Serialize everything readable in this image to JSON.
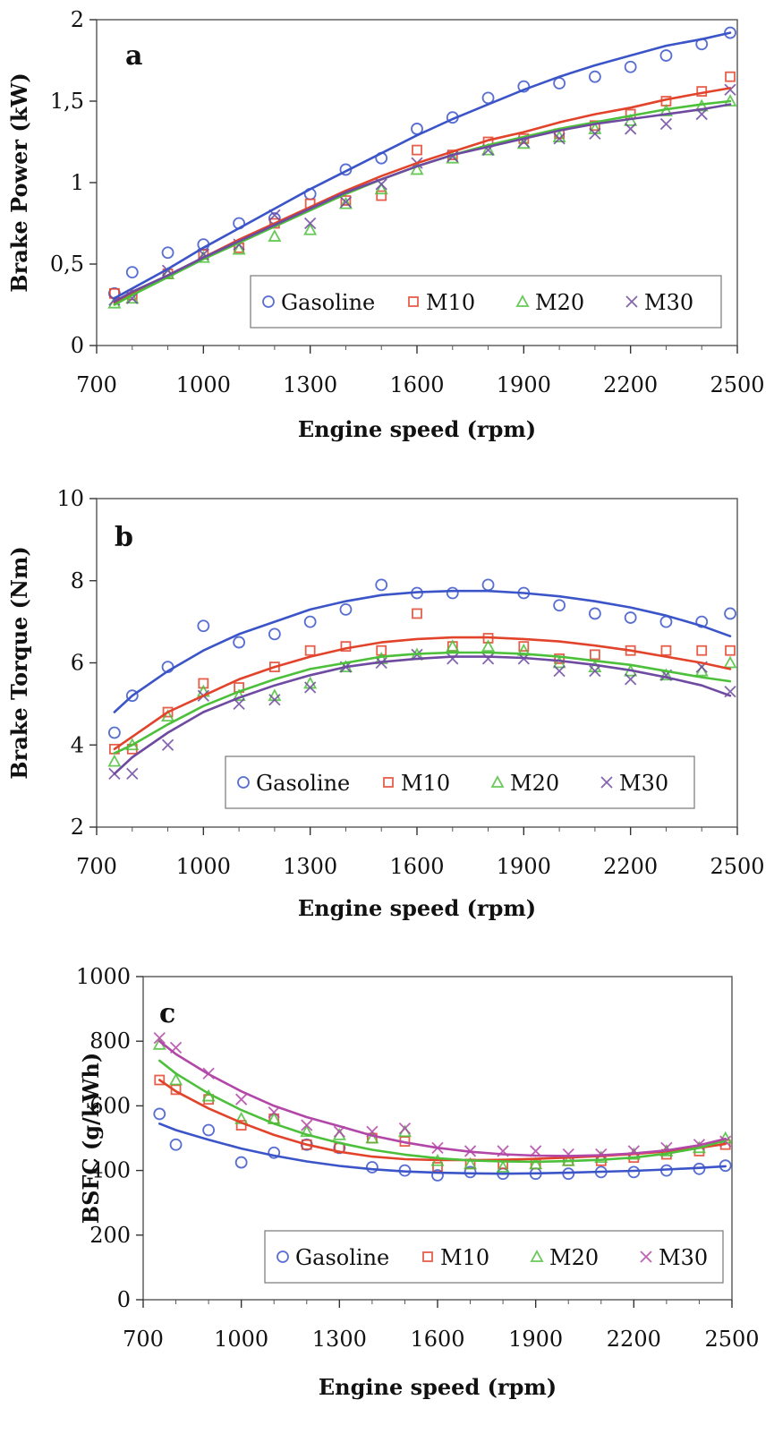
{
  "chart_data": [
    {
      "type": "scatter",
      "panel_label": "a",
      "xlabel": "Engine speed (rpm)",
      "ylabel": "Brake Power (kW)",
      "xlim": [
        700,
        2500
      ],
      "ylim": [
        0,
        2
      ],
      "x_ticks": [
        700,
        1000,
        1300,
        1600,
        1900,
        2200,
        2500
      ],
      "y_ticks": [
        0,
        0.5,
        1,
        1.5,
        2
      ],
      "y_tick_labels": [
        "0",
        "0,5",
        "1",
        "1,5",
        "2"
      ],
      "legend_position": "bottom-right",
      "x": [
        750,
        800,
        900,
        1000,
        1100,
        1200,
        1300,
        1400,
        1500,
        1600,
        1700,
        1800,
        1900,
        2000,
        2100,
        2200,
        2300,
        2400,
        2480
      ],
      "series": [
        {
          "name": "Gasoline",
          "marker": "circle",
          "color": "#3b55c9",
          "values": [
            0.32,
            0.45,
            0.57,
            0.62,
            0.75,
            0.78,
            0.93,
            1.08,
            1.15,
            1.33,
            1.4,
            1.52,
            1.59,
            1.61,
            1.65,
            1.71,
            1.78,
            1.85,
            1.92
          ],
          "fit": [
            0.29,
            0.35,
            0.47,
            0.6,
            0.72,
            0.84,
            0.96,
            1.07,
            1.18,
            1.29,
            1.39,
            1.48,
            1.57,
            1.65,
            1.72,
            1.78,
            1.84,
            1.88,
            1.92
          ]
        },
        {
          "name": "M10",
          "marker": "square",
          "color": "#e2432b",
          "values": [
            0.32,
            0.31,
            0.44,
            0.56,
            0.6,
            0.75,
            0.87,
            0.89,
            0.92,
            1.2,
            1.17,
            1.25,
            1.27,
            1.3,
            1.35,
            1.42,
            1.5,
            1.56,
            1.65
          ],
          "fit": [
            0.26,
            0.32,
            0.43,
            0.54,
            0.65,
            0.75,
            0.85,
            0.95,
            1.04,
            1.12,
            1.19,
            1.26,
            1.31,
            1.37,
            1.42,
            1.46,
            1.51,
            1.55,
            1.58
          ]
        },
        {
          "name": "M20",
          "marker": "triangle",
          "color": "#4cc03a",
          "values": [
            0.26,
            0.29,
            0.44,
            0.54,
            0.59,
            0.67,
            0.71,
            0.87,
            0.96,
            1.08,
            1.15,
            1.2,
            1.24,
            1.28,
            1.33,
            1.38,
            1.44,
            1.47,
            1.5
          ],
          "fit": [
            0.25,
            0.31,
            0.42,
            0.53,
            0.63,
            0.73,
            0.83,
            0.93,
            1.02,
            1.1,
            1.17,
            1.23,
            1.28,
            1.33,
            1.37,
            1.41,
            1.45,
            1.48,
            1.5
          ]
        },
        {
          "name": "M30",
          "marker": "cross",
          "color": "#6e4aa0",
          "values": [
            0.28,
            0.29,
            0.46,
            0.56,
            0.62,
            0.8,
            0.75,
            0.88,
            0.99,
            1.12,
            1.16,
            1.2,
            1.25,
            1.27,
            1.3,
            1.33,
            1.36,
            1.42,
            1.57
          ],
          "fit": [
            0.27,
            0.33,
            0.43,
            0.54,
            0.64,
            0.74,
            0.84,
            0.94,
            1.02,
            1.1,
            1.17,
            1.22,
            1.27,
            1.32,
            1.36,
            1.39,
            1.42,
            1.45,
            1.48
          ]
        }
      ]
    },
    {
      "type": "scatter",
      "panel_label": "b",
      "xlabel": "Engine speed (rpm)",
      "ylabel": "Brake Torque (Nm)",
      "xlim": [
        700,
        2500
      ],
      "ylim": [
        2,
        10
      ],
      "x_ticks": [
        700,
        1000,
        1300,
        1600,
        1900,
        2200,
        2500
      ],
      "y_ticks": [
        2,
        4,
        6,
        8,
        10
      ],
      "y_tick_labels": [
        "2",
        "4",
        "6",
        "8",
        "10"
      ],
      "legend_position": "bottom-right",
      "x": [
        750,
        800,
        900,
        1000,
        1100,
        1200,
        1300,
        1400,
        1500,
        1600,
        1700,
        1800,
        1900,
        2000,
        2100,
        2200,
        2300,
        2400,
        2480
      ],
      "series": [
        {
          "name": "Gasoline",
          "marker": "circle",
          "color": "#3b55c9",
          "values": [
            4.3,
            5.2,
            5.9,
            6.9,
            6.5,
            6.7,
            7.0,
            7.3,
            7.9,
            7.7,
            7.7,
            7.9,
            7.7,
            7.4,
            7.2,
            7.1,
            7.0,
            7.0,
            7.2
          ],
          "fit": [
            4.8,
            5.2,
            5.8,
            6.3,
            6.7,
            7.0,
            7.3,
            7.5,
            7.65,
            7.72,
            7.75,
            7.75,
            7.7,
            7.62,
            7.5,
            7.35,
            7.15,
            6.9,
            6.65
          ]
        },
        {
          "name": "M10",
          "marker": "square",
          "color": "#e2432b",
          "values": [
            3.9,
            3.9,
            4.8,
            5.5,
            5.4,
            5.9,
            6.3,
            6.4,
            6.3,
            7.2,
            6.4,
            6.6,
            6.4,
            6.1,
            6.2,
            6.3,
            6.3,
            6.3,
            6.3
          ],
          "fit": [
            3.9,
            4.2,
            4.8,
            5.2,
            5.6,
            5.9,
            6.15,
            6.35,
            6.5,
            6.58,
            6.62,
            6.62,
            6.58,
            6.52,
            6.42,
            6.3,
            6.15,
            6.0,
            5.85
          ]
        },
        {
          "name": "M20",
          "marker": "triangle",
          "color": "#4cc03a",
          "values": [
            3.6,
            4.0,
            4.7,
            5.3,
            5.2,
            5.2,
            5.5,
            5.9,
            6.1,
            6.2,
            6.4,
            6.4,
            6.3,
            6.0,
            5.9,
            5.8,
            5.7,
            5.8,
            6.0
          ],
          "fit": [
            3.8,
            4.0,
            4.5,
            4.95,
            5.3,
            5.6,
            5.85,
            6.0,
            6.15,
            6.22,
            6.25,
            6.25,
            6.22,
            6.15,
            6.05,
            5.95,
            5.8,
            5.65,
            5.55
          ]
        },
        {
          "name": "M30",
          "marker": "cross",
          "color": "#6e4aa0",
          "values": [
            3.3,
            3.3,
            4.0,
            5.2,
            5.0,
            5.1,
            5.4,
            5.9,
            6.0,
            6.2,
            6.1,
            6.1,
            6.1,
            5.8,
            5.8,
            5.6,
            5.7,
            5.9,
            5.3
          ],
          "fit": [
            3.3,
            3.7,
            4.3,
            4.8,
            5.15,
            5.45,
            5.7,
            5.9,
            6.02,
            6.1,
            6.15,
            6.15,
            6.12,
            6.05,
            5.95,
            5.82,
            5.65,
            5.45,
            5.2
          ]
        }
      ]
    },
    {
      "type": "scatter",
      "panel_label": "c",
      "xlabel": "Engine speed (rpm)",
      "ylabel": "BSFC (g/kWh)",
      "xlim": [
        700,
        2500
      ],
      "ylim": [
        0,
        1000
      ],
      "x_ticks": [
        700,
        1000,
        1300,
        1600,
        1900,
        2200,
        2500
      ],
      "y_ticks": [
        0,
        200,
        400,
        600,
        800,
        1000
      ],
      "y_tick_labels": [
        "0",
        "200",
        "400",
        "600",
        "800",
        "1000"
      ],
      "legend_position": "bottom-right",
      "x": [
        750,
        800,
        900,
        1000,
        1100,
        1200,
        1300,
        1400,
        1500,
        1600,
        1700,
        1800,
        1900,
        2000,
        2100,
        2200,
        2300,
        2400,
        2480
      ],
      "series": [
        {
          "name": "Gasoline",
          "marker": "circle",
          "color": "#3b55c9",
          "values": [
            575,
            480,
            525,
            425,
            455,
            480,
            470,
            410,
            400,
            385,
            395,
            390,
            390,
            390,
            395,
            395,
            400,
            405,
            415
          ],
          "fit": [
            545,
            525,
            495,
            468,
            446,
            428,
            414,
            404,
            397,
            393,
            391,
            390,
            391,
            393,
            396,
            399,
            403,
            408,
            413
          ]
        },
        {
          "name": "M10",
          "marker": "square",
          "color": "#e2432b",
          "values": [
            680,
            650,
            620,
            540,
            560,
            480,
            470,
            500,
            490,
            410,
            420,
            420,
            420,
            430,
            430,
            440,
            450,
            460,
            480
          ],
          "fit": [
            680,
            645,
            592,
            548,
            510,
            480,
            458,
            443,
            435,
            432,
            432,
            433,
            436,
            440,
            445,
            451,
            459,
            470,
            482
          ]
        },
        {
          "name": "M20",
          "marker": "triangle",
          "color": "#4cc03a",
          "values": [
            790,
            680,
            630,
            560,
            560,
            520,
            510,
            500,
            520,
            430,
            420,
            410,
            420,
            430,
            440,
            450,
            460,
            470,
            500
          ],
          "fit": [
            740,
            700,
            638,
            587,
            545,
            511,
            485,
            464,
            449,
            438,
            431,
            428,
            427,
            429,
            433,
            440,
            452,
            470,
            493
          ]
        },
        {
          "name": "M30",
          "marker": "cross",
          "color": "#b247a8",
          "values": [
            810,
            780,
            700,
            620,
            580,
            540,
            520,
            520,
            530,
            470,
            460,
            460,
            460,
            450,
            450,
            460,
            470,
            480,
            490
          ],
          "fit": [
            800,
            760,
            698,
            645,
            600,
            565,
            537,
            508,
            487,
            470,
            458,
            450,
            446,
            445,
            447,
            453,
            462,
            478,
            498
          ]
        }
      ]
    }
  ]
}
